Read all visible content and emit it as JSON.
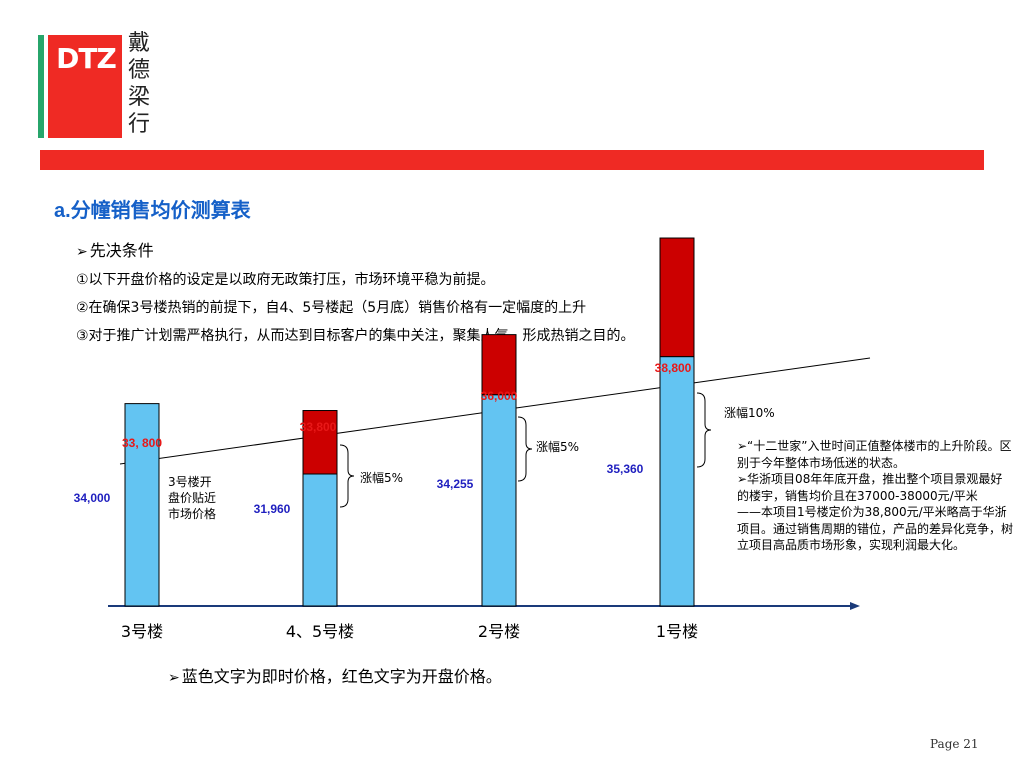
{
  "logo": {
    "text": "DTZ",
    "cn": "戴德梁行"
  },
  "colors": {
    "brand_red": "#ef2a24",
    "logo_green": "#27a56b",
    "bar_blue": "#63c4f2",
    "bar_red": "#cc0000",
    "price_blue": "#1f1fbf",
    "price_red": "#e81818",
    "title_blue": "#1560c8"
  },
  "section": {
    "prefix": "a.",
    "title": "分幢销售均价测算表"
  },
  "conditions": {
    "heading": "先决条件",
    "arrow": "➢",
    "items": [
      "①以下开盘价格的设定是以政府无政策打压，市场环境平稳为前提。",
      "②在确保3号楼热销的前提下，自4、5号楼起（5月底）销售价格有一定幅度的上升",
      "③对于推广计划需严格执行，从而达到目标客户的集中关注，聚集人气、形成热销之目的。"
    ]
  },
  "chart_data": {
    "type": "bar",
    "categories": [
      "3号楼",
      "4、5号楼",
      "2号楼",
      "1号楼"
    ],
    "series": [
      {
        "name": "即时价格",
        "values": [
          34000,
          31960,
          34255,
          35360
        ]
      },
      {
        "name": "开盘价格",
        "values": [
          33800,
          33800,
          36000,
          38800
        ]
      }
    ],
    "value_labels_blue": [
      "34,000",
      "31,960",
      "34,255",
      "35,360"
    ],
    "value_labels_red": [
      "33, 800",
      "33,800",
      "36,000",
      "38,800"
    ],
    "annotations": {
      "bar1_note": [
        "3号楼开",
        "盘价贴近",
        "市场价格"
      ],
      "increase_labels": [
        "涨幅5%",
        "涨幅5%",
        "涨幅10%"
      ]
    },
    "trend_line": true,
    "legend": "none"
  },
  "side_note": {
    "lines": [
      "➢“十二世家”入世时间正值整体楼市的上升阶段。区别于今年整体市场低迷的状态。",
      "➢华浙项目08年年底开盘，推出整个项目景观最好的楼宇，销售均价且在37000-38000元/平米",
      "——本项目1号楼定价为38,800元/平米略高于华浙项目。通过销售周期的错位，产品的差异化竞争，树立项目高品质市场形象，实现利润最大化。"
    ]
  },
  "footer": {
    "arrow": "➢",
    "note": "蓝色文字为即时价格，红色文字为开盘价格。",
    "page": "Page 21"
  }
}
